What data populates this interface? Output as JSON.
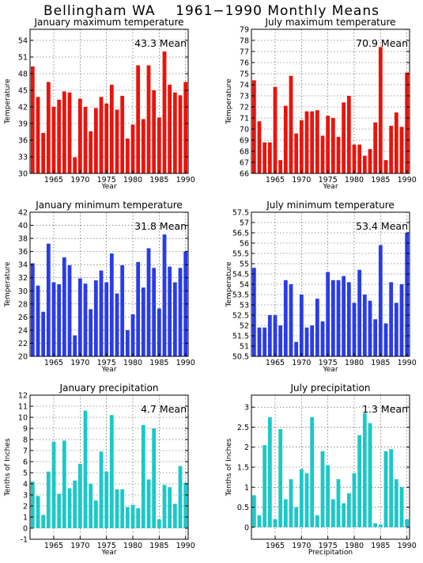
{
  "page": {
    "title_location": "Bellingham WA",
    "title_period": "1961−1990 Monthly Means"
  },
  "colors": {
    "red": "#e8140c",
    "blue": "#2a3ce6",
    "cyan": "#1cc8c8"
  },
  "chart_data": [
    {
      "type": "bar",
      "title": "January maximum temperature",
      "mean_label": "43.3 Mean",
      "ylabel": "Temperature",
      "xlabel": "Year",
      "color": "red",
      "ylim": [
        30,
        56
      ],
      "yticks": [
        30,
        33,
        36,
        39,
        42,
        45,
        48,
        51,
        54
      ],
      "xticks": [
        1965,
        1970,
        1975,
        1980,
        1985,
        1990
      ],
      "x": [
        1961,
        1962,
        1963,
        1964,
        1965,
        1966,
        1967,
        1968,
        1969,
        1970,
        1971,
        1972,
        1973,
        1974,
        1975,
        1976,
        1977,
        1978,
        1979,
        1980,
        1981,
        1982,
        1983,
        1984,
        1985,
        1986,
        1987,
        1988,
        1989,
        1990
      ],
      "values": [
        49.3,
        43.8,
        37.3,
        46.5,
        42.0,
        43.3,
        44.8,
        44.6,
        32.9,
        43.5,
        42.0,
        37.6,
        41.8,
        43.8,
        42.6,
        46.0,
        41.5,
        44.0,
        36.3,
        38.8,
        49.5,
        39.8,
        49.5,
        45.0,
        40.1,
        52.0,
        46.0,
        44.6,
        44.1,
        46.5
      ],
      "grid": true
    },
    {
      "type": "bar",
      "title": "July maximum temperature",
      "mean_label": "70.9 Mean",
      "ylabel": "Temperature",
      "xlabel": "Year",
      "color": "red",
      "ylim": [
        66,
        79
      ],
      "yticks": [
        66,
        67,
        68,
        69,
        70,
        71,
        72,
        73,
        74,
        75,
        76,
        77,
        78,
        79
      ],
      "xticks": [
        1965,
        1970,
        1975,
        1980,
        1985,
        1990
      ],
      "x": [
        1961,
        1962,
        1963,
        1964,
        1965,
        1966,
        1967,
        1968,
        1969,
        1970,
        1971,
        1972,
        1973,
        1974,
        1975,
        1976,
        1977,
        1978,
        1979,
        1980,
        1981,
        1982,
        1983,
        1984,
        1985,
        1986,
        1987,
        1988,
        1989,
        1990
      ],
      "values": [
        74.4,
        70.7,
        68.8,
        68.8,
        73.8,
        67.2,
        72.1,
        74.8,
        69.6,
        70.8,
        71.6,
        71.6,
        71.7,
        69.4,
        71.2,
        71.0,
        69.3,
        72.4,
        73.0,
        68.6,
        68.6,
        67.6,
        68.2,
        70.6,
        77.4,
        67.2,
        70.3,
        71.5,
        70.2,
        75.1
      ],
      "grid": true
    },
    {
      "type": "bar",
      "title": "January minimum temperature",
      "mean_label": "31.8 Mean",
      "ylabel": "Temperature",
      "xlabel": "Year",
      "color": "blue",
      "ylim": [
        20,
        42
      ],
      "yticks": [
        20,
        22,
        24,
        26,
        28,
        30,
        32,
        34,
        36,
        38,
        40,
        42
      ],
      "xticks": [
        1965,
        1970,
        1975,
        1980,
        1985,
        1990
      ],
      "x": [
        1961,
        1962,
        1963,
        1964,
        1965,
        1966,
        1967,
        1968,
        1969,
        1970,
        1971,
        1972,
        1973,
        1974,
        1975,
        1976,
        1977,
        1978,
        1979,
        1980,
        1981,
        1982,
        1983,
        1984,
        1985,
        1986,
        1987,
        1988,
        1989,
        1990
      ],
      "values": [
        34.2,
        30.8,
        26.8,
        37.2,
        31.3,
        31.0,
        35.1,
        33.9,
        23.2,
        31.9,
        31.1,
        27.2,
        31.6,
        33.1,
        31.3,
        35.7,
        29.6,
        33.9,
        24.0,
        26.4,
        34.4,
        30.5,
        36.5,
        33.5,
        27.3,
        38.6,
        33.7,
        31.3,
        33.5,
        36.0
      ],
      "grid": true
    },
    {
      "type": "bar",
      "title": "July minimum temperature",
      "mean_label": "53.4 Mean",
      "ylabel": "Temperature",
      "xlabel": "Year",
      "color": "blue",
      "ylim": [
        50.5,
        57.5
      ],
      "yticks": [
        50.5,
        51,
        51.5,
        52,
        52.5,
        53,
        53.5,
        54,
        54.5,
        55,
        55.5,
        56,
        56.5,
        57,
        57.5
      ],
      "xticks": [
        1965,
        1970,
        1975,
        1980,
        1985,
        1990
      ],
      "x": [
        1961,
        1962,
        1963,
        1964,
        1965,
        1966,
        1967,
        1968,
        1969,
        1970,
        1971,
        1972,
        1973,
        1974,
        1975,
        1976,
        1977,
        1978,
        1979,
        1980,
        1981,
        1982,
        1983,
        1984,
        1985,
        1986,
        1987,
        1988,
        1989,
        1990
      ],
      "values": [
        54.8,
        51.9,
        51.9,
        52.5,
        52.5,
        52.0,
        54.2,
        54.0,
        51.2,
        53.5,
        51.9,
        52.0,
        53.3,
        52.2,
        54.6,
        54.2,
        54.2,
        54.4,
        54.1,
        53.1,
        54.7,
        53.5,
        53.2,
        52.3,
        55.9,
        52.1,
        54.1,
        53.1,
        54.0,
        56.5
      ],
      "grid": true
    },
    {
      "type": "bar",
      "title": "January precipitation",
      "mean_label": "4.7 Mean",
      "ylabel": "Tenths of Inches",
      "xlabel": "Year",
      "color": "cyan",
      "ylim": [
        -1,
        12
      ],
      "yticks": [
        -1,
        0,
        1,
        2,
        3,
        4,
        5,
        6,
        7,
        8,
        9,
        10,
        11,
        12
      ],
      "xticks": [
        1965,
        1970,
        1975,
        1980,
        1985,
        1990
      ],
      "x": [
        1961,
        1962,
        1963,
        1964,
        1965,
        1966,
        1967,
        1968,
        1969,
        1970,
        1971,
        1972,
        1973,
        1974,
        1975,
        1976,
        1977,
        1978,
        1979,
        1980,
        1981,
        1982,
        1983,
        1984,
        1985,
        1986,
        1987,
        1988,
        1989,
        1990
      ],
      "values": [
        4.2,
        2.9,
        1.2,
        5.1,
        7.8,
        3.1,
        7.9,
        3.6,
        4.3,
        5.8,
        10.6,
        4.0,
        2.5,
        6.9,
        5.1,
        10.2,
        3.5,
        3.5,
        1.9,
        2.1,
        1.8,
        9.3,
        4.4,
        9.0,
        0.8,
        3.9,
        3.7,
        2.2,
        5.6,
        4.1
      ],
      "grid": true
    },
    {
      "type": "bar",
      "title": "July precipitation",
      "mean_label": "1.3 Mean",
      "ylabel": "Tenths of Inches",
      "xlabel": "Precipitation",
      "color": "cyan",
      "ylim": [
        -0.3,
        3.3
      ],
      "yticks": [
        0,
        0.5,
        1,
        1.5,
        2,
        2.5,
        3
      ],
      "xticks": [
        1965,
        1970,
        1975,
        1980,
        1985,
        1990
      ],
      "x": [
        1961,
        1962,
        1963,
        1964,
        1965,
        1966,
        1967,
        1968,
        1969,
        1970,
        1971,
        1972,
        1973,
        1974,
        1975,
        1976,
        1977,
        1978,
        1979,
        1980,
        1981,
        1982,
        1983,
        1984,
        1985,
        1986,
        1987,
        1988,
        1989,
        1990
      ],
      "values": [
        0.8,
        0.3,
        2.05,
        2.75,
        0.2,
        2.45,
        0.7,
        1.2,
        0.5,
        1.45,
        1.35,
        2.75,
        0.3,
        1.9,
        1.55,
        0.7,
        1.2,
        0.6,
        0.85,
        1.35,
        2.3,
        2.85,
        2.6,
        0.1,
        0.07,
        1.9,
        1.95,
        1.2,
        1.0,
        0.2
      ],
      "grid": true
    }
  ]
}
